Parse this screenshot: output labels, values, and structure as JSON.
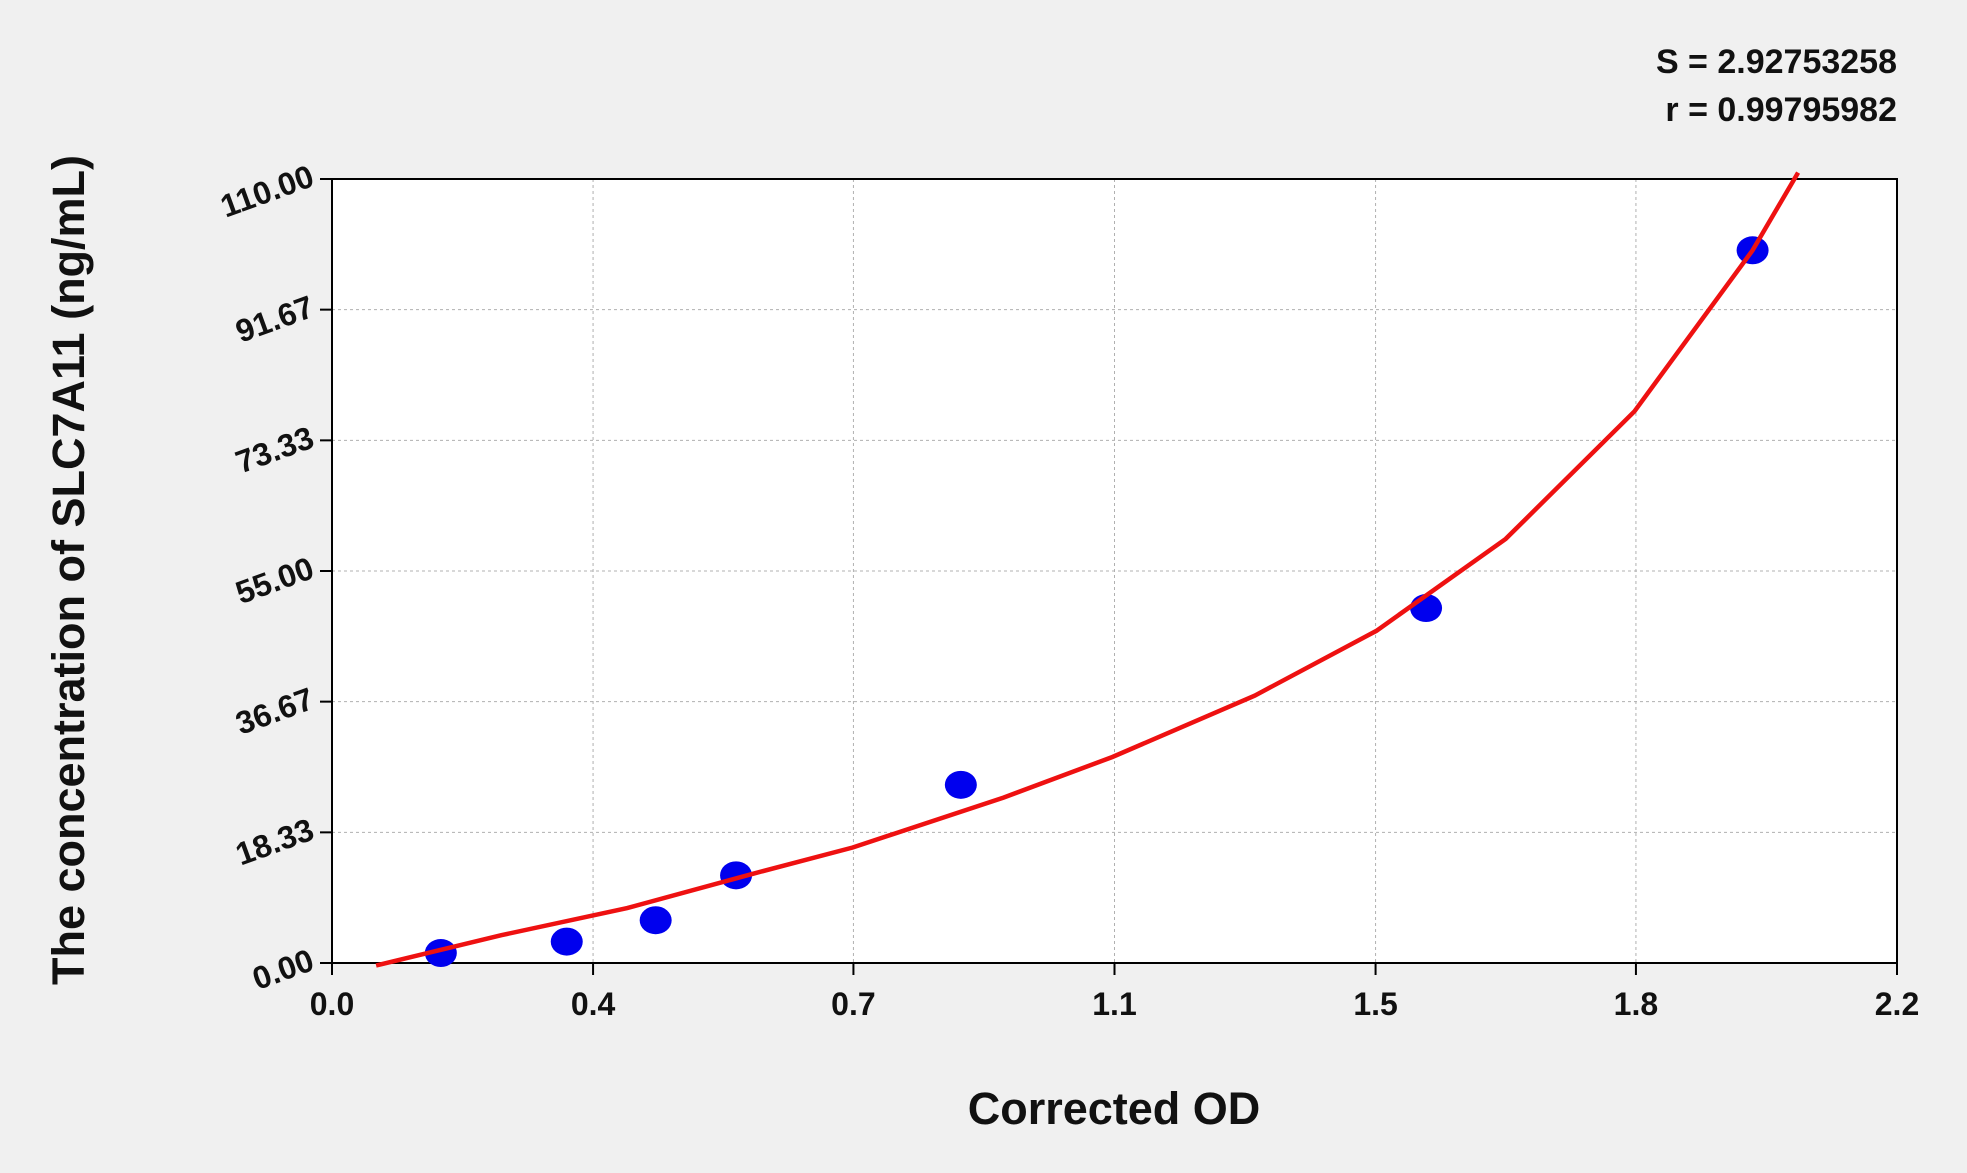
{
  "chart_data": {
    "type": "scatter",
    "x_label": "Corrected OD",
    "y_label": "The concentration of SLC7A11 (ng/mL)",
    "annotations": [
      "S = 2.92753258",
      "r = 0.99795982"
    ],
    "xlim": [
      0,
      2.2
    ],
    "xticks": [
      {
        "value": 0,
        "label": "0.0"
      },
      {
        "value": 0.367,
        "label": "0.4"
      },
      {
        "value": 0.733,
        "label": "0.7"
      },
      1.1,
      {
        "value": 1.467,
        "label": "1.5"
      },
      {
        "value": 1.833,
        "label": "1.8"
      },
      2.2
    ],
    "ylim": [
      0,
      110
    ],
    "yticks": [
      {
        "value": 0,
        "label": "0.00"
      },
      {
        "value": 18.33,
        "label": "18.33"
      },
      {
        "value": 36.67,
        "label": "36.67"
      },
      {
        "value": 55,
        "label": "55.00"
      },
      {
        "value": 73.33,
        "label": "73.33"
      },
      {
        "value": 91.67,
        "label": "91.67"
      },
      {
        "value": 110,
        "label": "110.00"
      }
    ],
    "grid": true,
    "series": [
      {
        "kind": "points",
        "color": "#0000ee",
        "x": [
          0.153,
          0.33,
          0.455,
          0.568,
          0.884,
          1.538,
          1.997
        ],
        "values": [
          1.4,
          3.0,
          6.0,
          12.3,
          25.0,
          49.8,
          100.0
        ]
      },
      {
        "kind": "line",
        "color": "#ee1111",
        "x": [
          0.062,
          0.238,
          0.415,
          0.591,
          0.732,
          0.944,
          1.097,
          1.297,
          1.468,
          1.65,
          1.831,
          1.997,
          2.061
        ],
        "values": [
          -0.35,
          3.9,
          7.7,
          12.5,
          16.2,
          23.2,
          28.9,
          37.5,
          46.6,
          59.5,
          77.4,
          100.0,
          110.9
        ]
      }
    ]
  }
}
